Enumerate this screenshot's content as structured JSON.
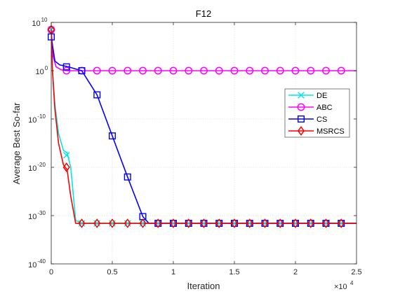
{
  "chart_data": {
    "type": "line",
    "title": "F12",
    "xlabel": "Iteration",
    "ylabel": "Average Best So-far",
    "x_multiplier_label": {
      "base": "×10",
      "exp": "4"
    },
    "xlim": [
      0,
      25000
    ],
    "ylim_log10": [
      -40,
      10
    ],
    "y_scale": "log",
    "grid": true,
    "legend_position": "right-middle",
    "x_ticks": [
      {
        "value": 0,
        "label": "0"
      },
      {
        "value": 5000,
        "label": "0.5"
      },
      {
        "value": 10000,
        "label": "1"
      },
      {
        "value": 15000,
        "label": "1.5"
      },
      {
        "value": 20000,
        "label": "2"
      },
      {
        "value": 25000,
        "label": "2.5"
      }
    ],
    "y_ticks": [
      {
        "exp10": 10,
        "base": "10",
        "exp": "10"
      },
      {
        "exp10": 0,
        "base": "10",
        "exp": "0"
      },
      {
        "exp10": -10,
        "base": "10",
        "exp": "-10"
      },
      {
        "exp10": -20,
        "base": "10",
        "exp": "-20"
      },
      {
        "exp10": -30,
        "base": "10",
        "exp": "-30"
      },
      {
        "exp10": -40,
        "base": "10",
        "exp": "-40"
      }
    ],
    "series": [
      {
        "name": "DE",
        "color": "#00e5e5",
        "marker": "x",
        "line_x": [
          0,
          100,
          300,
          600,
          1000,
          1300,
          1600,
          2000,
          2500,
          3000,
          25000
        ],
        "line_log10y": [
          8.5,
          0,
          -7,
          -13,
          -16.5,
          -17,
          -20,
          -31,
          -31.6,
          -31.6,
          -31.6
        ],
        "marker_x": [
          0,
          1250,
          2500,
          3750,
          5000,
          6250,
          7500,
          8750,
          10000,
          11250,
          12500,
          13750,
          15000,
          16250,
          17500,
          18750,
          20000,
          21250,
          22500,
          23750
        ],
        "marker_log10y": [
          8.5,
          -17.5,
          -31.6,
          -31.6,
          -31.6,
          -31.6,
          -31.6,
          -31.6,
          -31.6,
          -31.6,
          -31.6,
          -31.6,
          -31.6,
          -31.6,
          -31.6,
          -31.6,
          -31.6,
          -31.6,
          -31.6,
          -31.6
        ]
      },
      {
        "name": "ABC",
        "color": "#ff00ff",
        "marker": "o",
        "line_x": [
          0,
          150,
          400,
          800,
          1250,
          2000,
          25000
        ],
        "line_log10y": [
          8.5,
          3,
          0.8,
          0.2,
          0,
          0,
          0
        ],
        "marker_x": [
          0,
          1250,
          2500,
          3750,
          5000,
          6250,
          7500,
          8750,
          10000,
          11250,
          12500,
          13750,
          15000,
          16250,
          17500,
          18750,
          20000,
          21250,
          22500,
          23750
        ],
        "marker_log10y": [
          8.5,
          0,
          0,
          0,
          0,
          0,
          0,
          0,
          0,
          0,
          0,
          0,
          0,
          0,
          0,
          0,
          0,
          0,
          0,
          0
        ]
      },
      {
        "name": "CS",
        "color": "#0000ff",
        "marker": "s",
        "line_x": [
          0,
          300,
          700,
          1250,
          2500,
          3750,
          5000,
          6250,
          7500,
          8000,
          25000
        ],
        "line_log10y": [
          7,
          2,
          1.2,
          0.9,
          0,
          -5,
          -13.5,
          -22,
          -30.2,
          -31.6,
          -31.6
        ],
        "marker_x": [
          0,
          1250,
          2500,
          3750,
          5000,
          6250,
          7500,
          8750,
          10000,
          11250,
          12500,
          13750,
          15000,
          16250,
          17500,
          18750,
          20000,
          21250,
          22500,
          23750
        ],
        "marker_log10y": [
          7,
          0.8,
          0,
          -5,
          -13.5,
          -22,
          -30.2,
          -31.6,
          -31.6,
          -31.6,
          -31.6,
          -31.6,
          -31.6,
          -31.6,
          -31.6,
          -31.6,
          -31.6,
          -31.6,
          -31.6,
          -31.6
        ]
      },
      {
        "name": "MSRCS",
        "color": "#ff0000",
        "marker": "d",
        "line_x": [
          0,
          100,
          300,
          600,
          1000,
          1300,
          1600,
          2000,
          2500,
          25000
        ],
        "line_log10y": [
          8.5,
          0,
          -8,
          -15,
          -19.5,
          -20.5,
          -26,
          -31.6,
          -31.6,
          -31.6
        ],
        "marker_x": [
          0,
          1250,
          2500,
          3750,
          5000,
          6250,
          7500,
          8750,
          10000,
          11250,
          12500,
          13750,
          15000,
          16250,
          17500,
          18750,
          20000,
          21250,
          22500,
          23750
        ],
        "marker_log10y": [
          8.5,
          -20,
          -31.6,
          -31.6,
          -31.6,
          -31.6,
          -31.6,
          -31.6,
          -31.6,
          -31.6,
          -31.6,
          -31.6,
          -31.6,
          -31.6,
          -31.6,
          -31.6,
          -31.6,
          -31.6,
          -31.6,
          -31.6
        ]
      }
    ]
  }
}
